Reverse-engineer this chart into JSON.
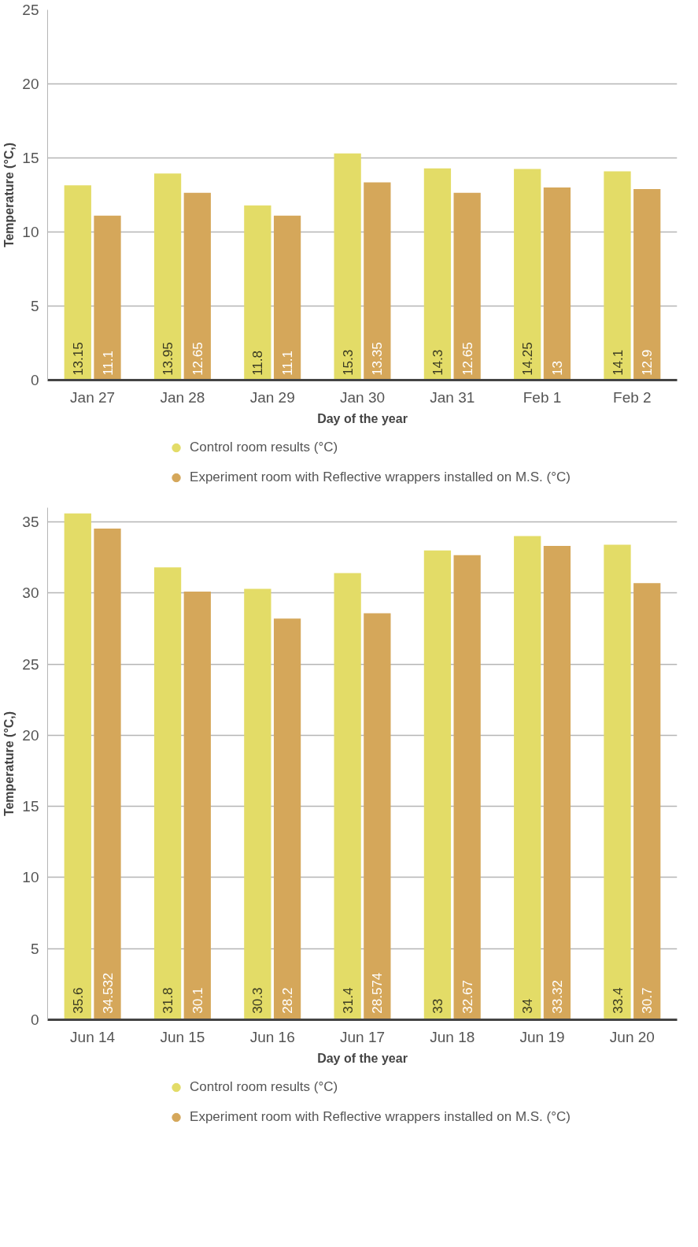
{
  "chart_data": [
    {
      "type": "bar",
      "xlabel": "Day of the year",
      "ylabel": "Temperature (°C,)",
      "categories": [
        "Jan 27",
        "Jan 28",
        "Jan 29",
        "Jan 30",
        "Jan 31",
        "Feb 1",
        "Feb 2"
      ],
      "series": [
        {
          "name": "Control room results (°C)",
          "color": "#e3dc67",
          "values": [
            13.15,
            13.95,
            11.8,
            15.3,
            14.3,
            14.25,
            14.1
          ]
        },
        {
          "name": "Experiment room with Reflective wrappers installed on M.S. (°C)",
          "color": "#d5a75a",
          "values": [
            11.1,
            12.65,
            11.1,
            13.35,
            12.65,
            13,
            12.9
          ]
        }
      ],
      "ylim": [
        0,
        25
      ],
      "yticks": [
        0,
        5,
        10,
        15,
        20,
        25
      ],
      "grid": "y",
      "legend": "bottom",
      "data_labels": true
    },
    {
      "type": "bar",
      "xlabel": "Day of the year",
      "ylabel": "Temperature (°C,)",
      "categories": [
        "Jun 14",
        "Jun 15",
        "Jun 16",
        "Jun 17",
        "Jun 18",
        "Jun 19",
        "Jun 20"
      ],
      "series": [
        {
          "name": "Control room results (°C)",
          "color": "#e3dc67",
          "values": [
            35.6,
            31.8,
            30.3,
            31.4,
            33,
            34,
            33.4
          ]
        },
        {
          "name": "Experiment room with Reflective wrappers installed on M.S. (°C)",
          "color": "#d5a75a",
          "values": [
            34.532,
            30.1,
            28.2,
            28.574,
            32.67,
            33.32,
            30.7
          ]
        }
      ],
      "ylim": [
        0,
        36
      ],
      "yticks": [
        0,
        5,
        10,
        15,
        20,
        25,
        30,
        35
      ],
      "grid": "y",
      "legend": "bottom",
      "data_labels": true
    }
  ]
}
